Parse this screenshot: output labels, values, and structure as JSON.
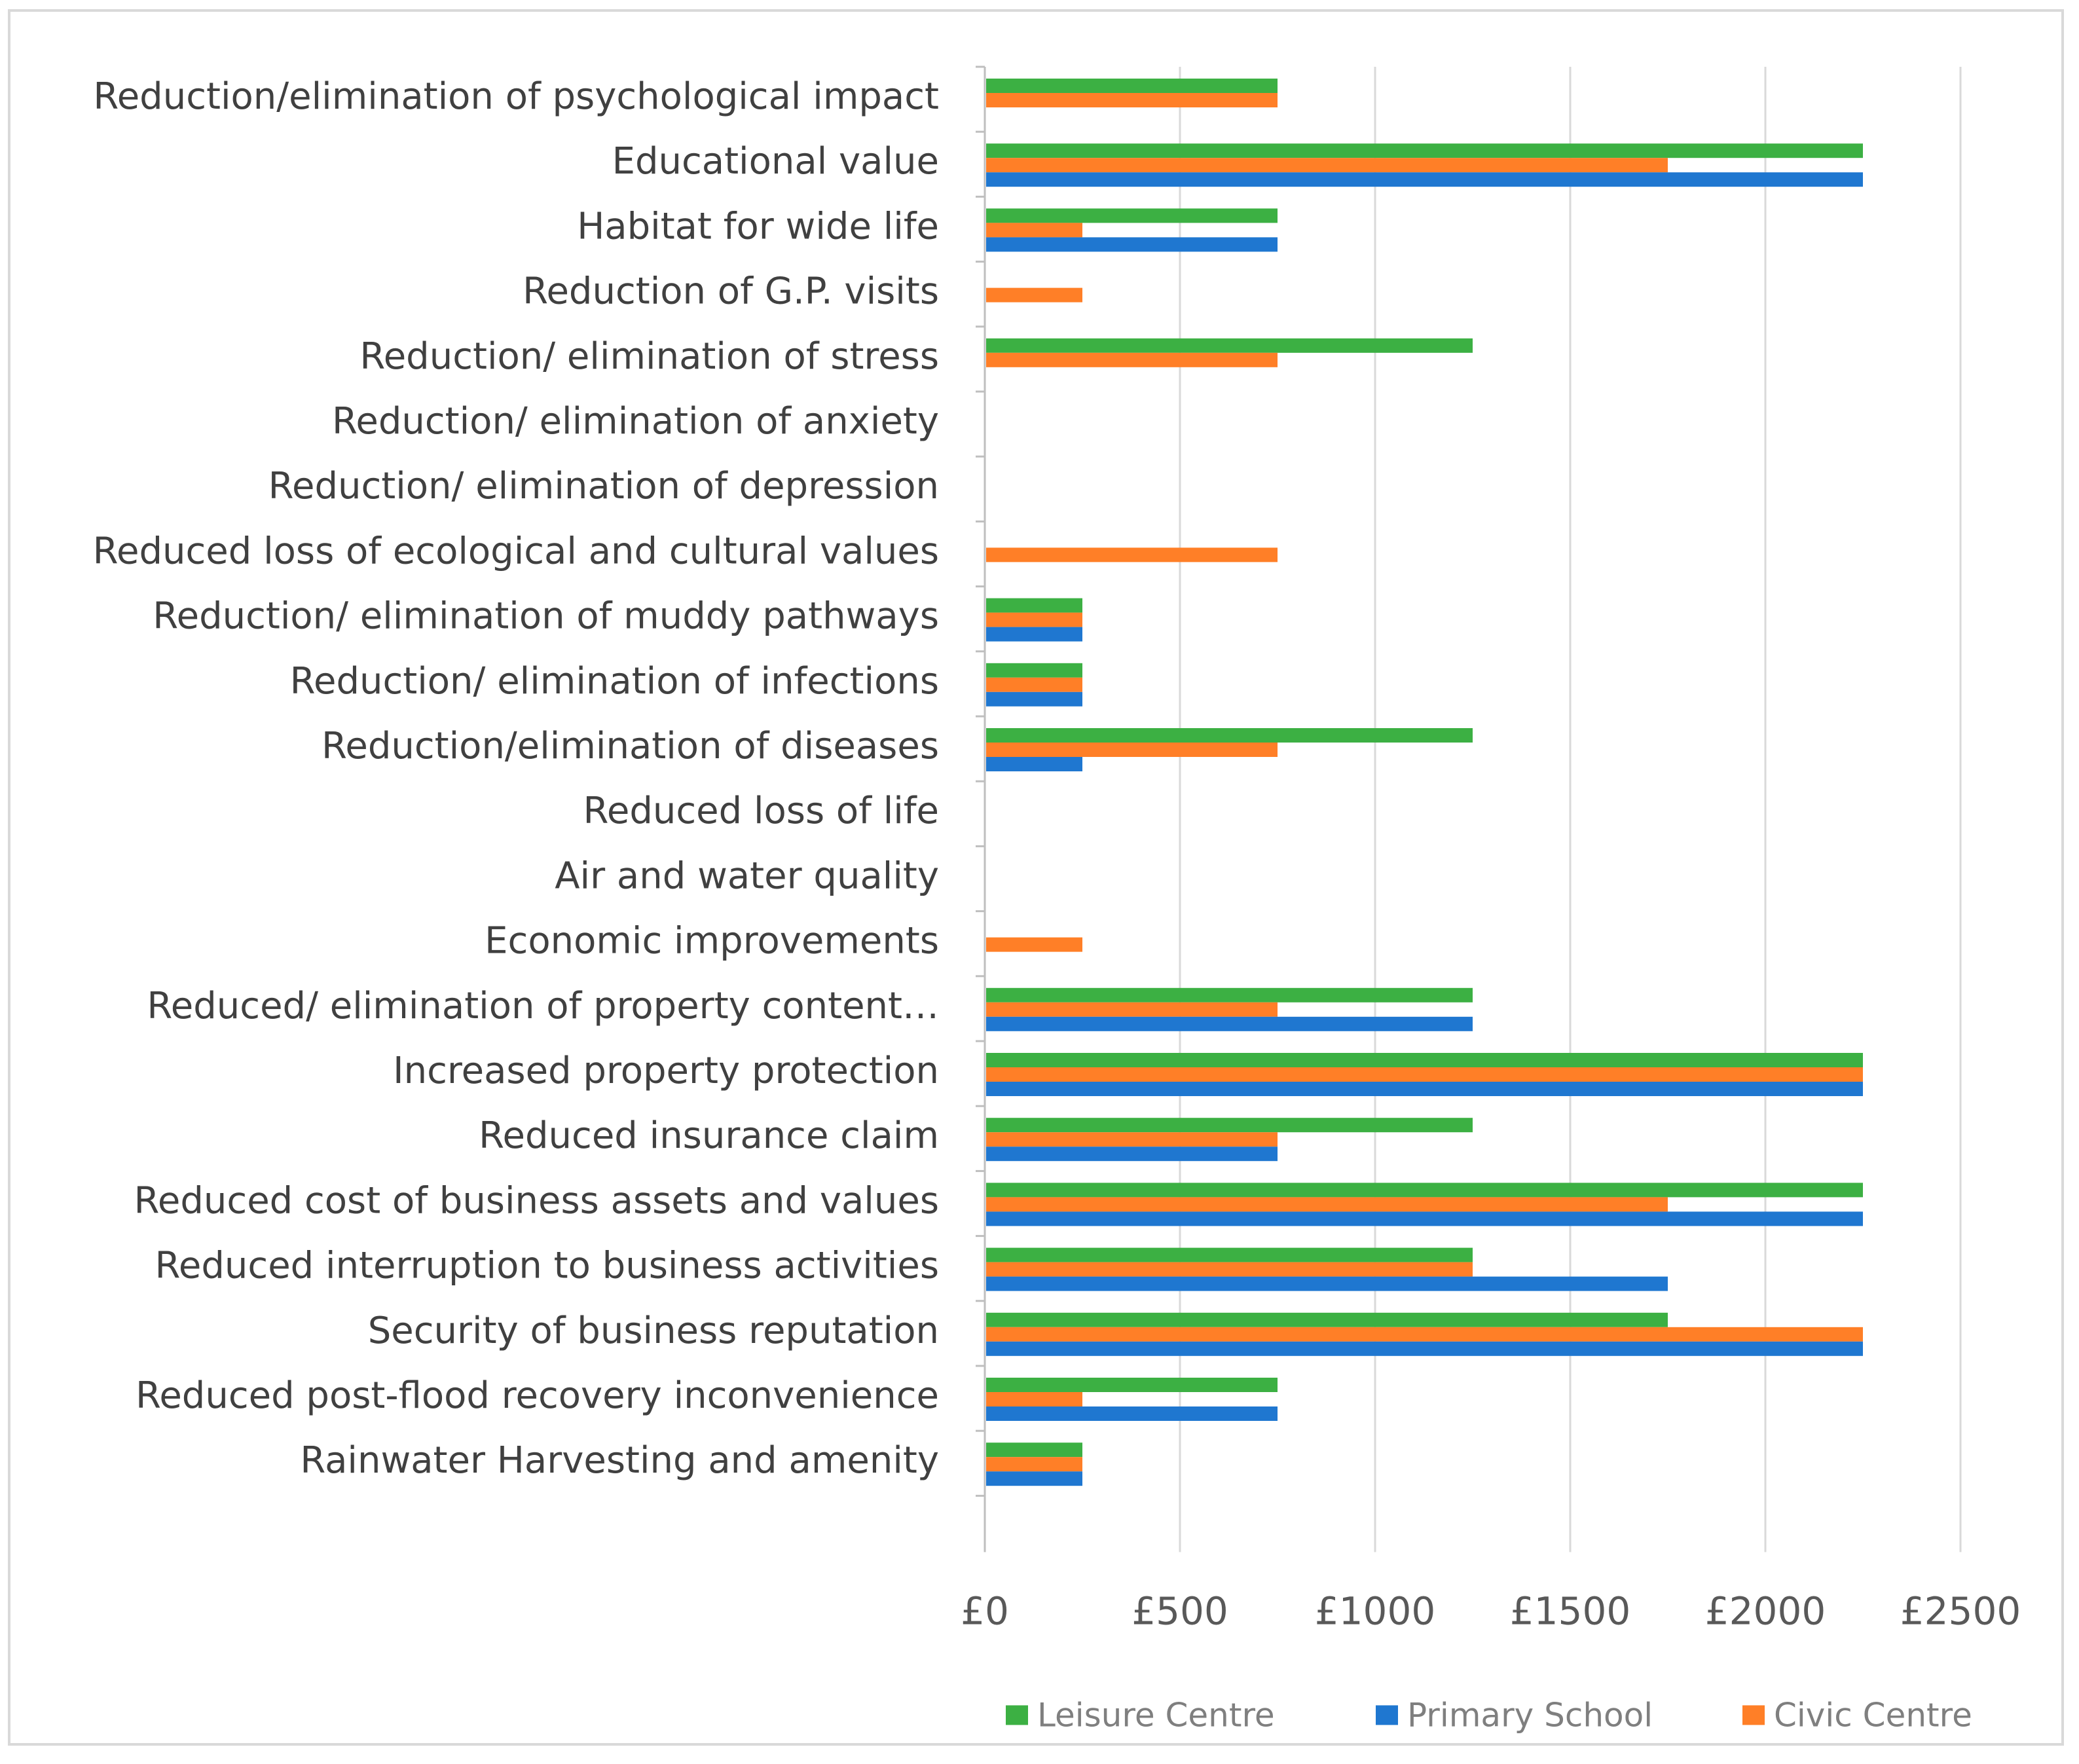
{
  "chart_data": {
    "type": "bar",
    "orientation": "horizontal",
    "title": "",
    "xlabel": "",
    "ylabel": "",
    "xlim": [
      0,
      2500
    ],
    "x_ticks": [
      "£0",
      "£500",
      "£1000",
      "£1500",
      "£2000",
      "£2500"
    ],
    "x_tick_values": [
      0,
      500,
      1000,
      1500,
      2000,
      2500
    ],
    "grid": "vertical",
    "legend_position": "bottom",
    "categories": [
      "Reduction/elimination of psychological impact",
      "Educational value",
      "Habitat for wide life",
      "Reduction of G.P. visits",
      "Reduction/ elimination of stress",
      "Reduction/ elimination of anxiety",
      "Reduction/ elimination of depression",
      "Reduced loss of ecological and cultural values",
      "Reduction/ elimination of muddy pathways",
      "Reduction/ elimination of infections",
      "Reduction/elimination of diseases",
      "Reduced loss of  life",
      "Air and water quality",
      "Economic improvements",
      "Reduced/ elimination of property content…",
      "Increased property protection",
      "Reduced insurance claim",
      "Reduced cost of business assets and values",
      "Reduced interruption to business activities",
      "Security of business reputation",
      "Reduced post-flood recovery inconvenience",
      "Rainwater Harvesting and amenity"
    ],
    "series": [
      {
        "name": "Leisure Centre",
        "color": "#3cb043",
        "values": [
          750,
          2250,
          750,
          0,
          1250,
          0,
          0,
          0,
          250,
          250,
          1250,
          0,
          0,
          0,
          1250,
          2250,
          1250,
          2250,
          1250,
          1750,
          750,
          250
        ]
      },
      {
        "name": "Civic Centre",
        "color": "#ff7f27",
        "values": [
          750,
          1750,
          250,
          250,
          750,
          0,
          0,
          750,
          250,
          250,
          750,
          0,
          0,
          250,
          750,
          2250,
          750,
          1750,
          1250,
          2250,
          250,
          250
        ]
      },
      {
        "name": "Primary School",
        "color": "#1f77d0",
        "values": [
          0,
          2250,
          750,
          0,
          0,
          0,
          0,
          0,
          250,
          250,
          250,
          0,
          0,
          0,
          1250,
          2250,
          750,
          2250,
          1750,
          2250,
          750,
          250
        ]
      }
    ],
    "legend": [
      {
        "name": "Leisure Centre",
        "color": "#3cb043"
      },
      {
        "name": "Primary School",
        "color": "#1f77d0"
      },
      {
        "name": "Civic Centre",
        "color": "#ff7f27"
      }
    ]
  }
}
